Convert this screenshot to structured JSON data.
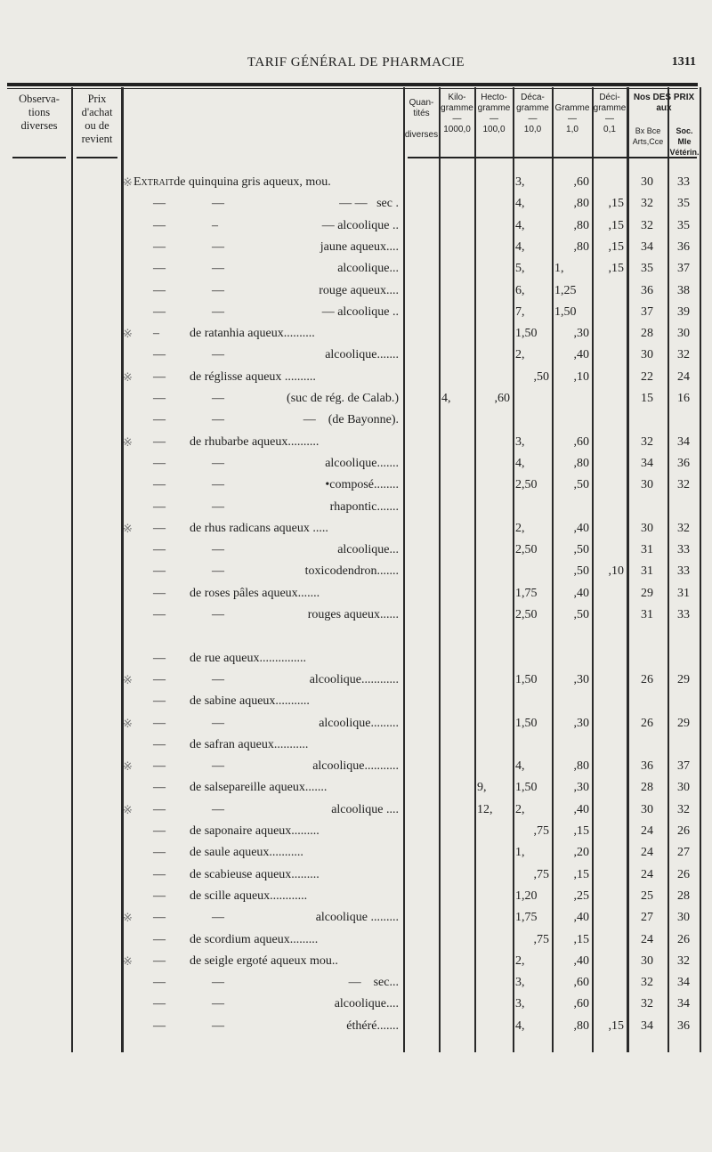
{
  "header": {
    "title": "TARIF GÉNÉRAL DE PHARMACIE",
    "page_number": "1311"
  },
  "columns": {
    "observations": "Observa-\ntions\ndiverses",
    "prix": "Prix\nd'achat\nou de\nrevient",
    "quantites": "Quan-\ntités\n\ndiverses",
    "kilo": "Kilo-\ngramme\n—\n1000,0",
    "hecto": "Hecto-\ngramme\n—\n100,0",
    "deca": "Déca-\ngramme\n—\n10,0",
    "gramme": "Gramme\n—\n1,0",
    "deci": "Déci-\ngramme\n—\n0,1",
    "prix_aux": "Nos DES PRIX\naux",
    "arts": "Bx Bce\nArts,Cce",
    "veterin": "Soc. Mle\nVétérin."
  },
  "rows": [
    {
      "star": "※",
      "lead": "Extrait",
      "text": "de quinquina gris aqueux, mou.",
      "align": "first",
      "deca": "3,",
      "gramme": ",60",
      "arts": "30",
      "vet": "33"
    },
    {
      "d1": "—",
      "d2": "—",
      "text": "— —   sec .",
      "align": "right",
      "deca": "4,",
      "gramme": ",80",
      "deci": ",15",
      "arts": "32",
      "vet": "35"
    },
    {
      "d1": "—",
      "d2": "–",
      "text": "— alcoolique ..",
      "align": "right",
      "deca": "4,",
      "gramme": ",80",
      "deci": ",15",
      "arts": "32",
      "vet": "35"
    },
    {
      "d1": "—",
      "d2": "—",
      "text": "jaune aqueux....",
      "align": "right",
      "deca": "4,",
      "gramme": ",80",
      "deci": ",15",
      "arts": "34",
      "vet": "36"
    },
    {
      "d1": "—",
      "d2": "—",
      "text": "alcoolique...",
      "align": "right",
      "deca": "5,",
      "gramme": "1,",
      "deci": ",15",
      "arts": "35",
      "vet": "37"
    },
    {
      "d1": "—",
      "d2": "—",
      "text": "rouge aqueux....",
      "align": "right",
      "deca": "6,",
      "gramme": "1,25",
      "arts": "36",
      "vet": "38"
    },
    {
      "d1": "—",
      "d2": "—",
      "text": "— alcoolique ..",
      "align": "right",
      "deca": "7,",
      "gramme": "1,50",
      "arts": "37",
      "vet": "39"
    },
    {
      "star": "※",
      "d1": "–",
      "text": "de ratanhia aqueux..........",
      "align": "left",
      "deca": "1,50",
      "gramme": ",30",
      "arts": "28",
      "vet": "30"
    },
    {
      "d1": "—",
      "d2": "—",
      "text": "alcoolique.......",
      "align": "right",
      "deca": "2,",
      "gramme": ",40",
      "arts": "30",
      "vet": "32"
    },
    {
      "star": "※",
      "d1": "—",
      "text": "de réglisse aqueux ..........",
      "align": "left",
      "deca": ",50",
      "gramme": ",10",
      "arts": "22",
      "vet": "24"
    },
    {
      "d1": "—",
      "d2": "—",
      "text": "(suc de rég. de Calab.)",
      "align": "right",
      "kilo": "4,",
      "hecto": ",60",
      "arts": "15",
      "vet": "16"
    },
    {
      "d1": "—",
      "d2": "—",
      "text": "—    (de Bayonne).",
      "align": "right"
    },
    {
      "star": "※",
      "d1": "—",
      "text": "de rhubarbe aqueux..........",
      "align": "left",
      "deca": "3,",
      "gramme": ",60",
      "arts": "32",
      "vet": "34"
    },
    {
      "d1": "—",
      "d2": "—",
      "text": "alcoolique.......",
      "align": "right",
      "deca": "4,",
      "gramme": ",80",
      "arts": "34",
      "vet": "36"
    },
    {
      "d1": "—",
      "d2": "—",
      "text": "•composé........",
      "align": "right",
      "deca": "2,50",
      "gramme": ",50",
      "arts": "30",
      "vet": "32"
    },
    {
      "d1": "—",
      "d2": "—",
      "text": "rhapontic.......",
      "align": "right"
    },
    {
      "star": "※",
      "d1": "—",
      "text": "de rhus radicans aqueux .....",
      "align": "left",
      "deca": "2,",
      "gramme": ",40",
      "arts": "30",
      "vet": "32"
    },
    {
      "d1": "—",
      "d2": "—",
      "text": "alcoolique...",
      "align": "right",
      "deca": "2,50",
      "gramme": ",50",
      "arts": "31",
      "vet": "33"
    },
    {
      "d1": "—",
      "d2": "—",
      "text": "toxicodendron.......",
      "align": "right",
      "gramme": ",50",
      "deci": ",10",
      "arts": "31",
      "vet": "33"
    },
    {
      "d1": "—",
      "text": "de roses pâles aqueux.......",
      "align": "left",
      "deca": "1,75",
      "gramme": ",40",
      "arts": "29",
      "vet": "31"
    },
    {
      "d1": "—",
      "d2": "—",
      "text": "rouges aqueux......",
      "align": "right",
      "deca": "2,50",
      "gramme": ",50",
      "arts": "31",
      "vet": "33"
    },
    {
      "blank": true
    },
    {
      "d1": "—",
      "text": "de rue aqueux...............",
      "align": "left"
    },
    {
      "star": "※",
      "d1": "—",
      "d2": "—",
      "text": "alcoolique............",
      "align": "right",
      "deca": "1,50",
      "gramme": ",30",
      "arts": "26",
      "vet": "29"
    },
    {
      "d1": "—",
      "text": "de sabine aqueux...........",
      "align": "left"
    },
    {
      "star": "※",
      "d1": "—",
      "d2": "—",
      "text": "alcoolique.........",
      "align": "right",
      "deca": "1,50",
      "gramme": ",30",
      "arts": "26",
      "vet": "29"
    },
    {
      "d1": "—",
      "text": "de safran aqueux...........",
      "align": "left"
    },
    {
      "star": "※",
      "d1": "—",
      "d2": "—",
      "text": "alcoolique...........",
      "align": "right",
      "deca": "4,",
      "gramme": ",80",
      "arts": "36",
      "vet": "37"
    },
    {
      "d1": "—",
      "text": "de salsepareille aqueux.......",
      "align": "left",
      "hecto": "9,",
      "deca": "1,50",
      "gramme": ",30",
      "arts": "28",
      "vet": "30"
    },
    {
      "star": "※",
      "d1": "—",
      "d2": "—",
      "text": "alcoolique ....",
      "align": "right",
      "hecto": "12,",
      "deca": "2,",
      "gramme": ",40",
      "arts": "30",
      "vet": "32"
    },
    {
      "d1": "—",
      "text": "de saponaire aqueux.........",
      "align": "left",
      "deca": ",75",
      "gramme": ",15",
      "arts": "24",
      "vet": "26"
    },
    {
      "d1": "—",
      "text": "de saule aqueux...........",
      "align": "left",
      "deca": "1,",
      "gramme": ",20",
      "arts": "24",
      "vet": "27"
    },
    {
      "d1": "—",
      "text": "de scabieuse aqueux.........",
      "align": "left",
      "deca": ",75",
      "gramme": ",15",
      "arts": "24",
      "vet": "26"
    },
    {
      "d1": "—",
      "text": "de scille aqueux............",
      "align": "left",
      "deca": "1,20",
      "gramme": ",25",
      "arts": "25",
      "vet": "28"
    },
    {
      "star": "※",
      "d1": "—",
      "d2": "—",
      "text": "alcoolique .........",
      "align": "right",
      "deca": "1,75",
      "gramme": ",40",
      "arts": "27",
      "vet": "30"
    },
    {
      "d1": "—",
      "text": "de scordium aqueux.........",
      "align": "left",
      "deca": ",75",
      "gramme": ",15",
      "arts": "24",
      "vet": "26"
    },
    {
      "star": "※",
      "d1": "—",
      "text": "de seigle ergoté aqueux mou..",
      "align": "left",
      "deca": "2,",
      "gramme": ",40",
      "arts": "30",
      "vet": "32"
    },
    {
      "d1": "—",
      "d2": "—",
      "text": "—    sec...",
      "align": "right",
      "deca": "3,",
      "gramme": ",60",
      "arts": "32",
      "vet": "34"
    },
    {
      "d1": "—",
      "d2": "—",
      "text": "alcoolique....",
      "align": "right",
      "deca": "3,",
      "gramme": ",60",
      "arts": "32",
      "vet": "34"
    },
    {
      "d1": "—",
      "d2": "—",
      "text": "éthéré.......",
      "align": "right",
      "deca": "4,",
      "gramme": ",80",
      "deci": ",15",
      "arts": "34",
      "vet": "36"
    }
  ]
}
